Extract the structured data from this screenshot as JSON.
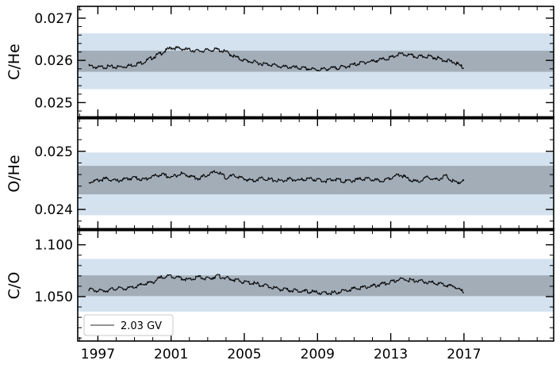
{
  "legend": {
    "label": "2.03 GV",
    "placement": "lower-left"
  },
  "chart_data": [
    {
      "type": "line",
      "ylabel": "C/He",
      "xlim": [
        1995.9,
        2021.9
      ],
      "ylim": [
        0.02465,
        0.02728
      ],
      "yticks": [
        0.025,
        0.026,
        0.027
      ],
      "ytick_labels": [
        "0.025",
        "0.026",
        "0.027"
      ],
      "band_outer": [
        0.02532,
        0.02664
      ],
      "band_inner": [
        0.02573,
        0.02623
      ],
      "series": [
        {
          "name": "2.03 GV",
          "x": [
            1996.5,
            1997.0,
            1997.5,
            1998.0,
            1998.5,
            1999.0,
            1999.5,
            2000.0,
            2000.5,
            2001.0,
            2001.5,
            2002.0,
            2002.5,
            2003.0,
            2003.5,
            2004.0,
            2004.5,
            2005.0,
            2005.5,
            2006.0,
            2006.5,
            2007.0,
            2007.5,
            2008.0,
            2008.5,
            2009.0,
            2009.5,
            2010.0,
            2010.5,
            2011.0,
            2011.5,
            2012.0,
            2012.5,
            2013.0,
            2013.5,
            2014.0,
            2014.5,
            2015.0,
            2015.5,
            2016.0,
            2016.5,
            2017.0
          ],
          "y": [
            0.02587,
            0.02583,
            0.02585,
            0.02584,
            0.02586,
            0.0259,
            0.02596,
            0.02607,
            0.02618,
            0.0263,
            0.02628,
            0.02625,
            0.02622,
            0.02624,
            0.02626,
            0.0262,
            0.02608,
            0.026,
            0.02596,
            0.02592,
            0.0259,
            0.02585,
            0.02584,
            0.02582,
            0.0258,
            0.02578,
            0.0258,
            0.02582,
            0.02585,
            0.0259,
            0.02595,
            0.02598,
            0.02602,
            0.02606,
            0.02615,
            0.02612,
            0.02608,
            0.0261,
            0.02606,
            0.026,
            0.02595,
            0.02582
          ]
        }
      ]
    },
    {
      "type": "line",
      "ylabel": "O/He",
      "xlim": [
        1995.9,
        2021.9
      ],
      "ylim": [
        0.02366,
        0.02557
      ],
      "yticks": [
        0.024,
        0.025
      ],
      "ytick_labels": [
        "0.024",
        "0.025"
      ],
      "band_outer": [
        0.0239,
        0.02498
      ],
      "band_inner": [
        0.02426,
        0.02475
      ],
      "series": [
        {
          "name": "2.03 GV",
          "x": [
            1996.5,
            1997.0,
            1997.5,
            1998.0,
            1998.5,
            1999.0,
            1999.5,
            2000.0,
            2000.5,
            2001.0,
            2001.5,
            2002.0,
            2002.5,
            2003.0,
            2003.5,
            2004.0,
            2004.5,
            2005.0,
            2005.5,
            2006.0,
            2006.5,
            2007.0,
            2007.5,
            2008.0,
            2008.5,
            2009.0,
            2009.5,
            2010.0,
            2010.5,
            2011.0,
            2011.5,
            2012.0,
            2012.5,
            2013.0,
            2013.5,
            2014.0,
            2014.5,
            2015.0,
            2015.5,
            2016.0,
            2016.5,
            2017.0
          ],
          "y": [
            0.02447,
            0.0245,
            0.02453,
            0.02449,
            0.02452,
            0.02455,
            0.02451,
            0.02457,
            0.0246,
            0.02455,
            0.02462,
            0.02458,
            0.02453,
            0.0246,
            0.02465,
            0.02455,
            0.02458,
            0.02452,
            0.0245,
            0.02454,
            0.02451,
            0.02449,
            0.02452,
            0.0245,
            0.02453,
            0.02451,
            0.02449,
            0.02452,
            0.02448,
            0.0245,
            0.02453,
            0.02451,
            0.02449,
            0.02455,
            0.0246,
            0.02452,
            0.02447,
            0.02455,
            0.02451,
            0.02458,
            0.02446,
            0.02449
          ]
        }
      ]
    },
    {
      "type": "line",
      "ylabel": "C/O",
      "xlim": [
        1995.9,
        2021.9
      ],
      "ylim": [
        1.0071,
        1.1143
      ],
      "yticks": [
        1.05,
        1.1
      ],
      "ytick_labels": [
        "1.050",
        "1.100"
      ],
      "band_outer": [
        1.0355,
        1.0865
      ],
      "band_inner": [
        1.0505,
        1.0705
      ],
      "series": [
        {
          "name": "2.03 GV",
          "x": [
            1996.5,
            1997.0,
            1997.5,
            1998.0,
            1998.5,
            1999.0,
            1999.5,
            2000.0,
            2000.5,
            2001.0,
            2001.5,
            2002.0,
            2002.5,
            2003.0,
            2003.5,
            2004.0,
            2004.5,
            2005.0,
            2005.5,
            2006.0,
            2006.5,
            2007.0,
            2007.5,
            2008.0,
            2008.5,
            2009.0,
            2009.5,
            2010.0,
            2010.5,
            2011.0,
            2011.5,
            2012.0,
            2012.5,
            2013.0,
            2013.5,
            2014.0,
            2014.5,
            2015.0,
            2015.5,
            2016.0,
            2016.5,
            2017.0
          ],
          "y": [
            1.057,
            1.0555,
            1.056,
            1.058,
            1.0575,
            1.059,
            1.062,
            1.064,
            1.069,
            1.07,
            1.068,
            1.066,
            1.069,
            1.067,
            1.07,
            1.068,
            1.066,
            1.064,
            1.063,
            1.061,
            1.059,
            1.057,
            1.056,
            1.0555,
            1.055,
            1.054,
            1.053,
            1.054,
            1.056,
            1.0575,
            1.059,
            1.06,
            1.062,
            1.064,
            1.067,
            1.066,
            1.065,
            1.064,
            1.063,
            1.061,
            1.06,
            1.054
          ]
        }
      ]
    }
  ],
  "x_axis": {
    "ticks": [
      1997,
      2001,
      2005,
      2009,
      2013,
      2017
    ],
    "tick_labels": [
      "1997",
      "2001",
      "2005",
      "2009",
      "2013",
      "2017"
    ],
    "minor_step": 1
  },
  "colors": {
    "band_outer": "#d3e2ee",
    "band_inner": "#a2adb8",
    "line": "#000000",
    "legend_line": "#555555"
  }
}
